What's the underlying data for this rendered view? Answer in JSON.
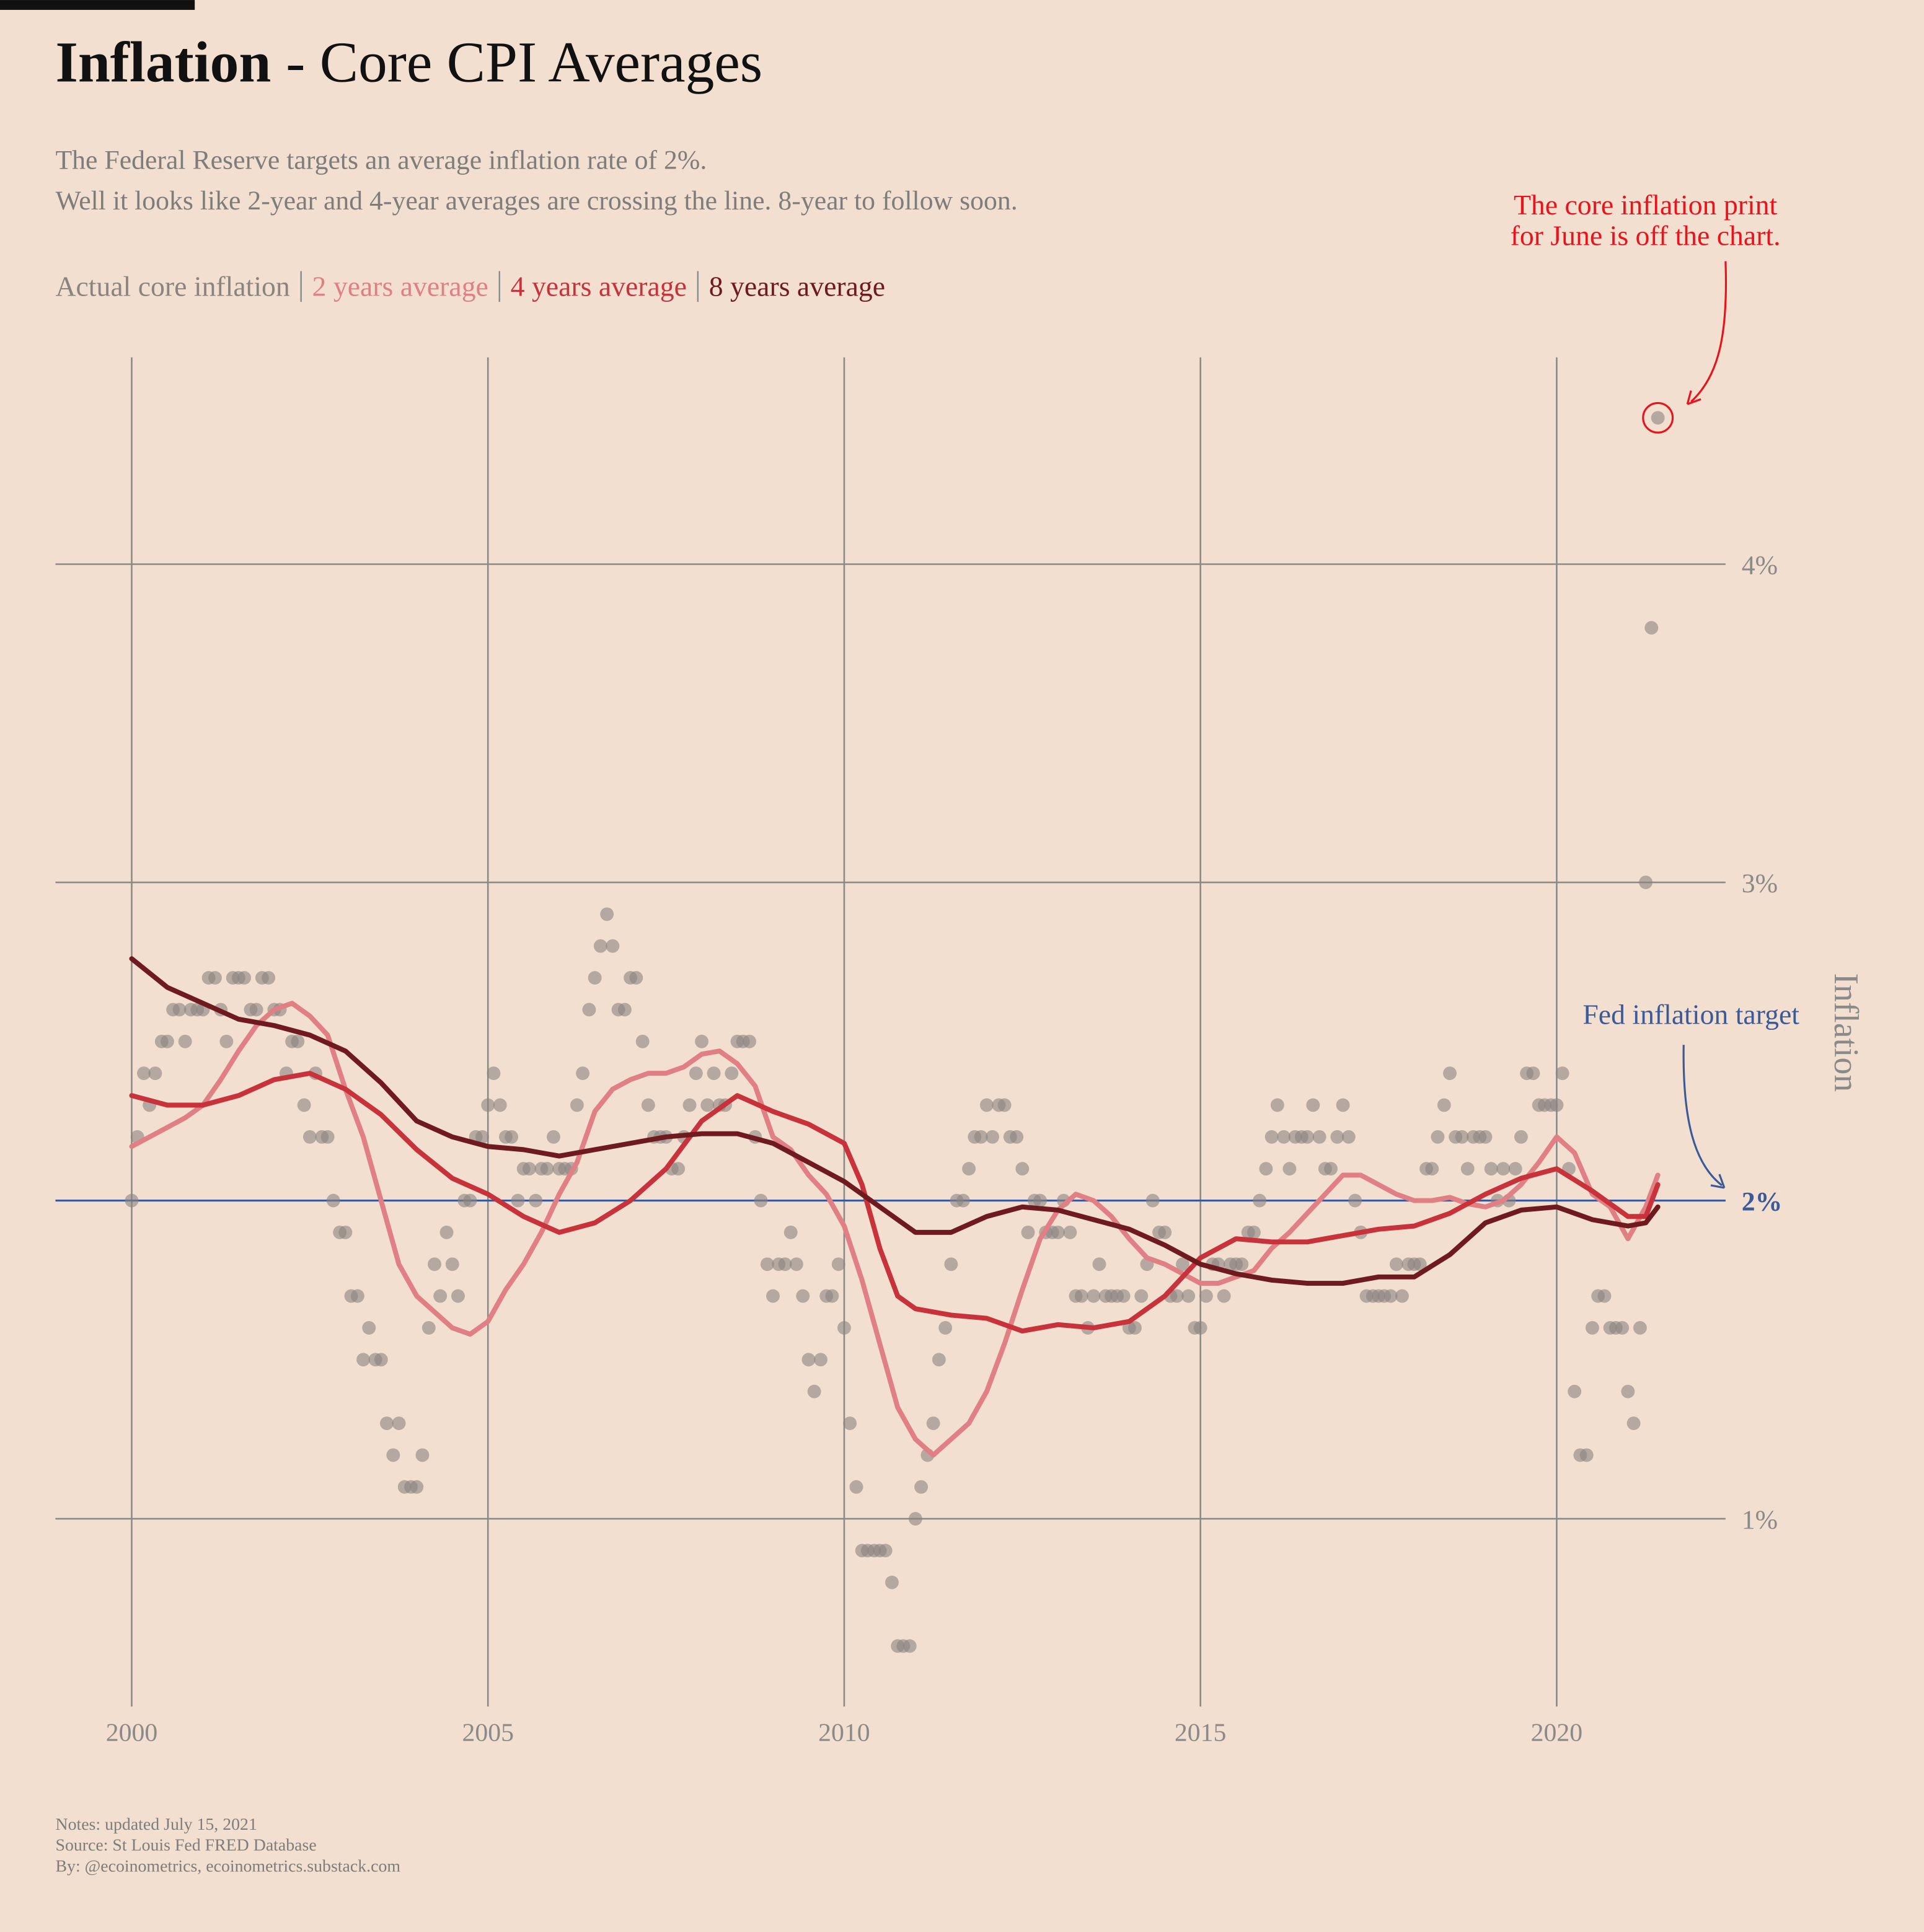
{
  "chart_data": {
    "type": "scatter",
    "title": [
      "Inflation",
      "- Core CPI Averages"
    ],
    "subtitle": [
      "The Federal Reserve targets an average inflation rate of 2%.",
      "Well it looks like 2-year and 4-year averages are crossing the line. 8-year to follow soon."
    ],
    "y_label": "Inflation",
    "notes": [
      "Notes: updated July 15, 2021",
      "Source: St Louis Fed FRED Database",
      "By: @ecoinometrics, ecoinometrics.substack.com"
    ],
    "annotations": [
      {
        "text": [
          "The core inflation print",
          "for June is off the chart."
        ],
        "color": "#e8141c"
      },
      {
        "text": [
          "Fed inflation target"
        ],
        "color": "#3a5a9a"
      }
    ],
    "target": 2,
    "target_color": "#3a5a9a",
    "xlim": [
      1998.93,
      2022.37
    ],
    "ylim": [
      0.41,
      4.65
    ],
    "xticks": [
      2000,
      2005,
      2010,
      2015,
      2020
    ],
    "yticks": [
      {
        "value": 1,
        "label": "1%"
      },
      {
        "value": 2,
        "label": "2%"
      },
      {
        "value": 3,
        "label": "3%"
      },
      {
        "value": 4,
        "label": "4%"
      }
    ],
    "grid": true,
    "series": [
      {
        "name": "Actual core inflation",
        "type": "scatter",
        "color": "#8a8480",
        "x": [
          2000,
          2000.08,
          2000.17,
          2000.25,
          2000.33,
          2000.42,
          2000.5,
          2000.58,
          2000.67,
          2000.75,
          2000.83,
          2000.92,
          2001,
          2001.08,
          2001.17,
          2001.25,
          2001.33,
          2001.42,
          2001.5,
          2001.58,
          2001.67,
          2001.75,
          2001.83,
          2001.92,
          2002,
          2002.08,
          2002.17,
          2002.25,
          2002.33,
          2002.42,
          2002.5,
          2002.58,
          2002.67,
          2002.75,
          2002.83,
          2002.92,
          2003,
          2003.08,
          2003.17,
          2003.25,
          2003.33,
          2003.42,
          2003.5,
          2003.58,
          2003.67,
          2003.75,
          2003.83,
          2003.92,
          2004,
          2004.08,
          2004.17,
          2004.25,
          2004.33,
          2004.42,
          2004.5,
          2004.58,
          2004.67,
          2004.75,
          2004.83,
          2004.92,
          2005,
          2005.08,
          2005.17,
          2005.25,
          2005.33,
          2005.42,
          2005.5,
          2005.58,
          2005.67,
          2005.75,
          2005.83,
          2005.92,
          2006,
          2006.08,
          2006.17,
          2006.25,
          2006.33,
          2006.42,
          2006.5,
          2006.58,
          2006.67,
          2006.75,
          2006.83,
          2006.92,
          2007,
          2007.08,
          2007.17,
          2007.25,
          2007.33,
          2007.42,
          2007.5,
          2007.58,
          2007.67,
          2007.75,
          2007.83,
          2007.92,
          2008,
          2008.08,
          2008.17,
          2008.25,
          2008.33,
          2008.42,
          2008.5,
          2008.58,
          2008.67,
          2008.75,
          2008.83,
          2008.92,
          2009,
          2009.08,
          2009.17,
          2009.25,
          2009.33,
          2009.42,
          2009.5,
          2009.58,
          2009.67,
          2009.75,
          2009.83,
          2009.92,
          2010,
          2010.08,
          2010.17,
          2010.25,
          2010.33,
          2010.42,
          2010.5,
          2010.58,
          2010.67,
          2010.75,
          2010.83,
          2010.92,
          2011,
          2011.08,
          2011.17,
          2011.25,
          2011.33,
          2011.42,
          2011.5,
          2011.58,
          2011.67,
          2011.75,
          2011.83,
          2011.92,
          2012,
          2012.08,
          2012.17,
          2012.25,
          2012.33,
          2012.42,
          2012.5,
          2012.58,
          2012.67,
          2012.75,
          2012.83,
          2012.92,
          2013,
          2013.08,
          2013.17,
          2013.25,
          2013.33,
          2013.42,
          2013.5,
          2013.58,
          2013.67,
          2013.75,
          2013.83,
          2013.92,
          2014,
          2014.08,
          2014.17,
          2014.25,
          2014.33,
          2014.42,
          2014.5,
          2014.58,
          2014.67,
          2014.75,
          2014.83,
          2014.92,
          2015,
          2015.08,
          2015.17,
          2015.25,
          2015.33,
          2015.42,
          2015.5,
          2015.58,
          2015.67,
          2015.75,
          2015.83,
          2015.92,
          2016,
          2016.08,
          2016.17,
          2016.25,
          2016.33,
          2016.42,
          2016.5,
          2016.58,
          2016.67,
          2016.75,
          2016.83,
          2016.92,
          2017,
          2017.08,
          2017.17,
          2017.25,
          2017.33,
          2017.42,
          2017.5,
          2017.58,
          2017.67,
          2017.75,
          2017.83,
          2017.92,
          2018,
          2018.08,
          2018.17,
          2018.25,
          2018.33,
          2018.42,
          2018.5,
          2018.58,
          2018.67,
          2018.75,
          2018.83,
          2018.92,
          2019,
          2019.08,
          2019.17,
          2019.25,
          2019.33,
          2019.42,
          2019.5,
          2019.58,
          2019.67,
          2019.75,
          2019.83,
          2019.92,
          2020,
          2020.08,
          2020.17,
          2020.25,
          2020.33,
          2020.42,
          2020.5,
          2020.58,
          2020.67,
          2020.75,
          2020.83,
          2020.92,
          2021,
          2021.08,
          2021.17,
          2021.25,
          2021.33,
          2021.42
        ],
        "values": [
          2.0,
          2.2,
          2.4,
          2.3,
          2.4,
          2.5,
          2.5,
          2.6,
          2.6,
          2.5,
          2.6,
          2.6,
          2.6,
          2.7,
          2.7,
          2.6,
          2.5,
          2.7,
          2.7,
          2.7,
          2.6,
          2.6,
          2.7,
          2.7,
          2.6,
          2.6,
          2.4,
          2.5,
          2.5,
          2.3,
          2.2,
          2.4,
          2.2,
          2.2,
          2.0,
          1.9,
          1.9,
          1.7,
          1.7,
          1.5,
          1.6,
          1.5,
          1.5,
          1.3,
          1.2,
          1.3,
          1.1,
          1.1,
          1.1,
          1.2,
          1.6,
          1.8,
          1.7,
          1.9,
          1.8,
          1.7,
          2.0,
          2.0,
          2.2,
          2.2,
          2.3,
          2.4,
          2.3,
          2.2,
          2.2,
          2.0,
          2.1,
          2.1,
          2.0,
          2.1,
          2.1,
          2.2,
          2.1,
          2.1,
          2.1,
          2.3,
          2.4,
          2.6,
          2.7,
          2.8,
          2.9,
          2.8,
          2.6,
          2.6,
          2.7,
          2.7,
          2.5,
          2.3,
          2.2,
          2.2,
          2.2,
          2.1,
          2.1,
          2.2,
          2.3,
          2.4,
          2.5,
          2.3,
          2.4,
          2.3,
          2.3,
          2.4,
          2.5,
          2.5,
          2.5,
          2.2,
          2.0,
          1.8,
          1.7,
          1.8,
          1.8,
          1.9,
          1.8,
          1.7,
          1.5,
          1.4,
          1.5,
          1.7,
          1.7,
          1.8,
          1.6,
          1.3,
          1.1,
          0.9,
          0.9,
          0.9,
          0.9,
          0.9,
          0.8,
          0.6,
          0.6,
          0.6,
          1.0,
          1.1,
          1.2,
          1.3,
          1.5,
          1.6,
          1.8,
          2.0,
          2.0,
          2.1,
          2.2,
          2.2,
          2.3,
          2.2,
          2.3,
          2.3,
          2.2,
          2.2,
          2.1,
          1.9,
          2.0,
          2.0,
          1.9,
          1.9,
          1.9,
          2.0,
          1.9,
          1.7,
          1.7,
          1.6,
          1.7,
          1.8,
          1.7,
          1.7,
          1.7,
          1.7,
          1.6,
          1.6,
          1.7,
          1.8,
          2.0,
          1.9,
          1.9,
          1.7,
          1.7,
          1.8,
          1.7,
          1.6,
          1.6,
          1.7,
          1.8,
          1.8,
          1.7,
          1.8,
          1.8,
          1.8,
          1.9,
          1.9,
          2.0,
          2.1,
          2.2,
          2.3,
          2.2,
          2.1,
          2.2,
          2.2,
          2.2,
          2.3,
          2.2,
          2.1,
          2.1,
          2.2,
          2.3,
          2.2,
          2.0,
          1.9,
          1.7,
          1.7,
          1.7,
          1.7,
          1.7,
          1.8,
          1.7,
          1.8,
          1.8,
          1.8,
          2.1,
          2.1,
          2.2,
          2.3,
          2.4,
          2.2,
          2.2,
          2.1,
          2.2,
          2.2,
          2.2,
          2.1,
          2.0,
          2.1,
          2.0,
          2.1,
          2.2,
          2.4,
          2.4,
          2.3,
          2.3,
          2.3,
          2.3,
          2.4,
          2.1,
          1.4,
          1.2,
          1.2,
          1.6,
          1.7,
          1.7,
          1.6,
          1.6,
          1.6,
          1.4,
          1.3,
          1.6,
          3.0,
          3.8,
          4.46
        ]
      },
      {
        "name": "2 years average",
        "type": "line",
        "color": "#e07f84",
        "x": [
          2000,
          2000.25,
          2000.5,
          2000.75,
          2001,
          2001.25,
          2001.5,
          2001.75,
          2002,
          2002.25,
          2002.5,
          2002.75,
          2003,
          2003.25,
          2003.5,
          2003.75,
          2004,
          2004.25,
          2004.5,
          2004.75,
          2005,
          2005.25,
          2005.5,
          2005.75,
          2006,
          2006.25,
          2006.5,
          2006.75,
          2007,
          2007.25,
          2007.5,
          2007.75,
          2008,
          2008.25,
          2008.5,
          2008.75,
          2009,
          2009.25,
          2009.5,
          2009.75,
          2010,
          2010.25,
          2010.5,
          2010.75,
          2011,
          2011.25,
          2011.5,
          2011.75,
          2012,
          2012.25,
          2012.5,
          2012.75,
          2013,
          2013.25,
          2013.5,
          2013.75,
          2014,
          2014.25,
          2014.5,
          2014.75,
          2015,
          2015.25,
          2015.5,
          2015.75,
          2016,
          2016.25,
          2016.5,
          2016.75,
          2017,
          2017.25,
          2017.5,
          2017.75,
          2018,
          2018.25,
          2018.5,
          2018.75,
          2019,
          2019.25,
          2019.5,
          2019.75,
          2020,
          2020.25,
          2020.5,
          2020.75,
          2021,
          2021.25,
          2021.42
        ],
        "values": [
          2.17,
          2.2,
          2.23,
          2.26,
          2.3,
          2.38,
          2.47,
          2.55,
          2.6,
          2.62,
          2.58,
          2.52,
          2.35,
          2.2,
          2.0,
          1.8,
          1.7,
          1.65,
          1.6,
          1.58,
          1.62,
          1.72,
          1.8,
          1.9,
          2.02,
          2.12,
          2.28,
          2.35,
          2.38,
          2.4,
          2.4,
          2.42,
          2.46,
          2.47,
          2.43,
          2.36,
          2.2,
          2.16,
          2.08,
          2.02,
          1.92,
          1.75,
          1.55,
          1.35,
          1.25,
          1.2,
          1.25,
          1.3,
          1.4,
          1.55,
          1.72,
          1.88,
          1.97,
          2.02,
          2.0,
          1.95,
          1.88,
          1.82,
          1.8,
          1.77,
          1.74,
          1.74,
          1.76,
          1.78,
          1.85,
          1.9,
          1.96,
          2.02,
          2.08,
          2.08,
          2.05,
          2.02,
          2.0,
          2.0,
          2.01,
          1.99,
          1.98,
          2.0,
          2.05,
          2.12,
          2.2,
          2.15,
          2.02,
          1.98,
          1.88,
          1.98,
          2.08
        ]
      },
      {
        "name": "4 years average",
        "type": "line",
        "color": "#c8323a",
        "x": [
          2000,
          2000.5,
          2001,
          2001.5,
          2002,
          2002.5,
          2003,
          2003.5,
          2004,
          2004.5,
          2005,
          2005.5,
          2006,
          2006.5,
          2007,
          2007.5,
          2008,
          2008.5,
          2009,
          2009.5,
          2010,
          2010.25,
          2010.5,
          2010.75,
          2011,
          2011.5,
          2012,
          2012.5,
          2013,
          2013.5,
          2014,
          2014.5,
          2015,
          2015.5,
          2016,
          2016.5,
          2017,
          2017.5,
          2018,
          2018.5,
          2019,
          2019.5,
          2020,
          2020.5,
          2021,
          2021.25,
          2021.42
        ],
        "values": [
          2.33,
          2.3,
          2.3,
          2.33,
          2.38,
          2.4,
          2.35,
          2.27,
          2.16,
          2.07,
          2.02,
          1.95,
          1.9,
          1.93,
          2.0,
          2.1,
          2.25,
          2.33,
          2.28,
          2.24,
          2.18,
          2.05,
          1.85,
          1.7,
          1.66,
          1.64,
          1.63,
          1.59,
          1.61,
          1.6,
          1.62,
          1.7,
          1.82,
          1.88,
          1.87,
          1.87,
          1.89,
          1.91,
          1.92,
          1.96,
          2.02,
          2.07,
          2.1,
          2.03,
          1.95,
          1.95,
          2.05
        ]
      },
      {
        "name": "8 years average",
        "type": "line",
        "color": "#6e1a1e",
        "x": [
          2000,
          2000.5,
          2001,
          2001.5,
          2002,
          2002.5,
          2003,
          2003.5,
          2004,
          2004.5,
          2005,
          2005.5,
          2006,
          2006.5,
          2007,
          2007.5,
          2008,
          2008.5,
          2009,
          2009.5,
          2010,
          2010.5,
          2011,
          2011.5,
          2012,
          2012.5,
          2013,
          2013.5,
          2014,
          2014.5,
          2015,
          2015.5,
          2016,
          2016.5,
          2017,
          2017.5,
          2018,
          2018.5,
          2019,
          2019.5,
          2020,
          2020.5,
          2021,
          2021.25,
          2021.42
        ],
        "values": [
          2.76,
          2.67,
          2.62,
          2.57,
          2.55,
          2.52,
          2.47,
          2.37,
          2.25,
          2.2,
          2.17,
          2.16,
          2.14,
          2.16,
          2.18,
          2.2,
          2.21,
          2.21,
          2.18,
          2.12,
          2.06,
          1.98,
          1.9,
          1.9,
          1.95,
          1.98,
          1.97,
          1.94,
          1.91,
          1.86,
          1.8,
          1.77,
          1.75,
          1.74,
          1.74,
          1.76,
          1.76,
          1.83,
          1.93,
          1.97,
          1.98,
          1.94,
          1.92,
          1.93,
          1.98
        ]
      }
    ]
  }
}
